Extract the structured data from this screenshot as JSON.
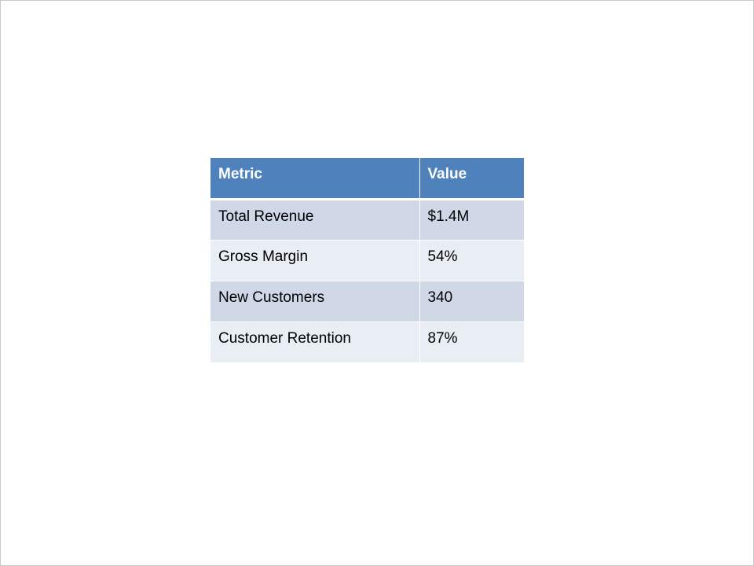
{
  "table": {
    "headers": [
      "Metric",
      "Value"
    ],
    "rows": [
      [
        "Total Revenue",
        "$1.4M"
      ],
      [
        "Gross Margin",
        "54%"
      ],
      [
        "New Customers",
        "340"
      ],
      [
        "Customer Retention",
        "87%"
      ]
    ]
  },
  "colors": {
    "header": "#4F81BD",
    "row_odd": "#D0D8E8",
    "row_even": "#E9EDF4"
  }
}
